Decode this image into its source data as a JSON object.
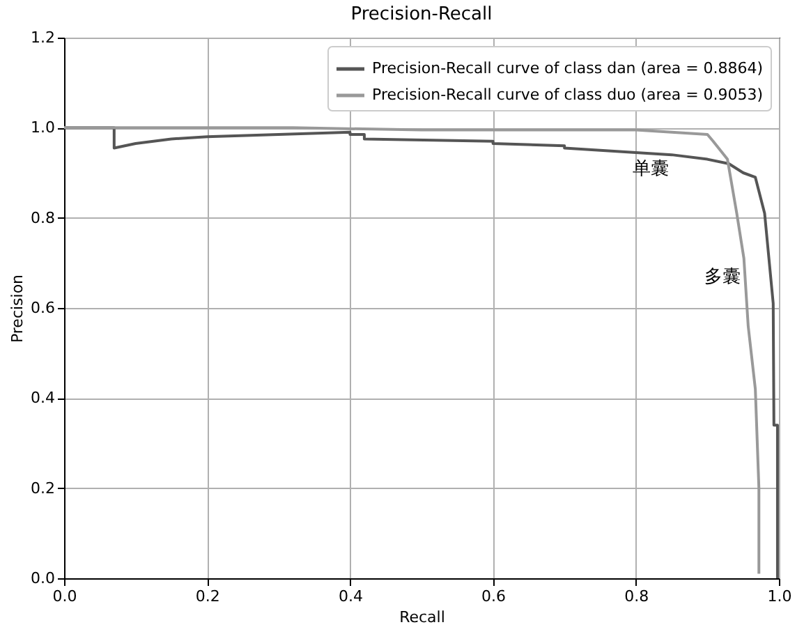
{
  "chart_data": {
    "type": "line",
    "title": "Precision-Recall",
    "xlabel": "Recall",
    "ylabel": "Precision",
    "xlim": [
      0,
      1.0
    ],
    "ylim": [
      0,
      1.2
    ],
    "xticks": [
      {
        "value": 0,
        "label": "0.0"
      },
      0.2,
      0.4,
      0.6,
      0.8,
      {
        "value": 1,
        "label": "1.0"
      }
    ],
    "yticks": [
      {
        "value": 0,
        "label": "0.0"
      },
      0.2,
      0.4,
      0.6,
      0.8,
      {
        "value": 1,
        "label": "1.0"
      },
      1.2
    ],
    "grid": true,
    "legend": "top right",
    "series": [
      {
        "name": "Precision-Recall curve of class dan (area = 0.8864)",
        "color": "#555555",
        "x": [
          0,
          0.07,
          0.07,
          0.1,
          0.15,
          0.2,
          0.3,
          0.4,
          0.4,
          0.42,
          0.42,
          0.6,
          0.6,
          0.7,
          0.7,
          0.8,
          0.85,
          0.9,
          0.93,
          0.95,
          0.967,
          0.98,
          0.986,
          0.992,
          0.993,
          0.998,
          0.998
        ],
        "values": [
          1.0,
          1.0,
          0.955,
          0.965,
          0.975,
          0.98,
          0.985,
          0.99,
          0.985,
          0.985,
          0.975,
          0.97,
          0.965,
          0.96,
          0.955,
          0.945,
          0.94,
          0.93,
          0.92,
          0.9,
          0.89,
          0.81,
          0.71,
          0.61,
          0.34,
          0.34,
          0.0
        ]
      },
      {
        "name": "Precision-Recall curve of class duo (area = 0.9053)",
        "color": "#999999",
        "x": [
          0,
          0.32,
          0.5,
          0.8,
          0.85,
          0.9,
          0.908,
          0.928,
          0.941,
          0.951,
          0.957,
          0.967,
          0.972,
          0.972
        ],
        "values": [
          1.0,
          1.0,
          0.995,
          0.995,
          0.99,
          0.985,
          0.97,
          0.93,
          0.81,
          0.71,
          0.56,
          0.42,
          0.2,
          0.01
        ]
      }
    ],
    "annotations": [
      {
        "text": "单囊",
        "x": 0.85,
        "y": 0.94
      },
      {
        "text": "多囊",
        "x": 0.95,
        "y": 0.7
      }
    ]
  }
}
